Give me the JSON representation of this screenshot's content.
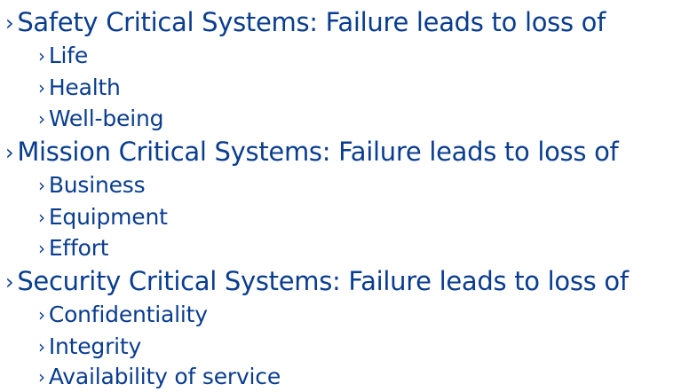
{
  "bullet_char": "›",
  "colors": {
    "text": "#0a3d8f"
  },
  "sections": [
    {
      "heading": "Safety Critical Systems: Failure leads to loss of",
      "items": [
        "Life",
        "Health",
        "Well-being"
      ]
    },
    {
      "heading": "Mission Critical Systems: Failure leads to loss of",
      "items": [
        "Business",
        "Equipment",
        "Effort"
      ]
    },
    {
      "heading": "Security Critical Systems: Failure leads to loss of",
      "items": [
        "Confidentiality",
        "Integrity",
        "Availability of service"
      ]
    }
  ]
}
